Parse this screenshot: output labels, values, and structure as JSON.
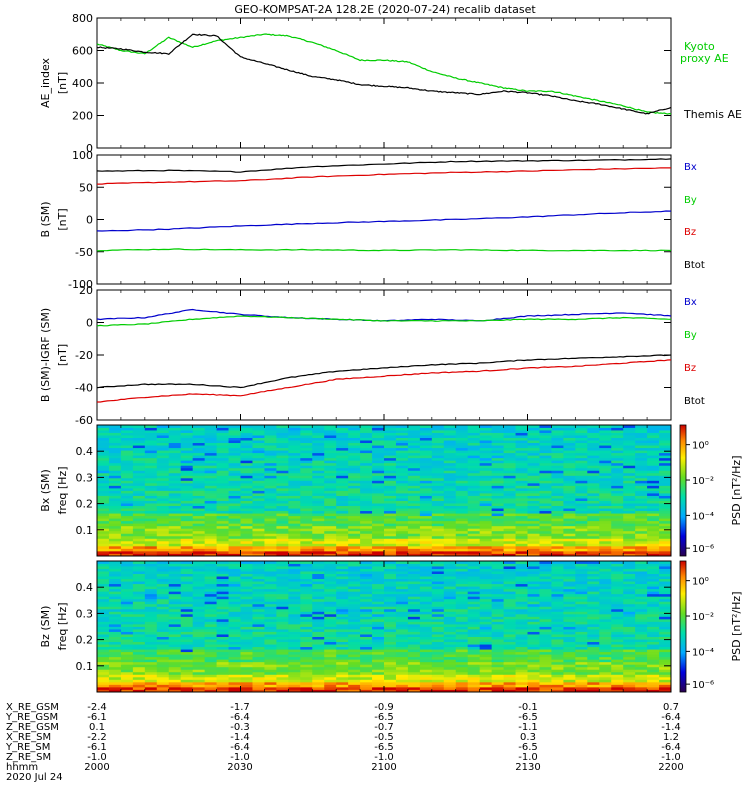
{
  "title": "GEO-KOMPSAT-2A 128.2E (2020-07-24) recalib dataset",
  "colors": {
    "black": "#000000",
    "red": "#dd0000",
    "blue": "#0000cc",
    "green": "#00cc00"
  },
  "chart_data": [
    {
      "type": "line",
      "panel": "ae",
      "ylabel": "AE_index",
      "yunit": "[nT]",
      "ylim": [
        0,
        800
      ],
      "yticks": [
        0,
        200,
        400,
        600,
        800
      ],
      "x": [
        2000,
        2005,
        2010,
        2015,
        2020,
        2025,
        2030,
        2035,
        2040,
        2045,
        2050,
        2055,
        2100,
        2105,
        2110,
        2115,
        2120,
        2125,
        2130,
        2135,
        2140,
        2145,
        2150,
        2155,
        2200
      ],
      "series": [
        {
          "name": "Kyoto proxy AE",
          "color": "#00cc00",
          "label_lines": [
            "Kyoto",
            "proxy AE"
          ],
          "values": [
            640,
            600,
            580,
            680,
            620,
            660,
            680,
            700,
            690,
            650,
            600,
            540,
            540,
            530,
            470,
            430,
            400,
            370,
            350,
            350,
            320,
            290,
            260,
            220,
            210
          ]
        },
        {
          "name": "Themis AE",
          "color": "#000000",
          "label_lines": [
            "Themis AE"
          ],
          "values": [
            620,
            610,
            590,
            580,
            700,
            690,
            560,
            520,
            480,
            440,
            420,
            390,
            380,
            370,
            350,
            340,
            330,
            350,
            340,
            320,
            290,
            270,
            240,
            210,
            250
          ]
        }
      ]
    },
    {
      "type": "line",
      "panel": "b_sm",
      "ylabel": "B (SM)",
      "yunit": "[nT]",
      "ylim": [
        -100,
        100
      ],
      "yticks": [
        -100,
        -50,
        0,
        50,
        100
      ],
      "x": [
        2000,
        2015,
        2030,
        2045,
        2100,
        2115,
        2130,
        2145,
        2200
      ],
      "series": [
        {
          "name": "Bx",
          "color": "#000000",
          "values": [
            75,
            76,
            74,
            82,
            86,
            90,
            91,
            92,
            94
          ]
        },
        {
          "name": "By",
          "color": "#00cc00",
          "values": [
            -48,
            -46,
            -47,
            -47,
            -48,
            -47,
            -48,
            -48,
            -48
          ]
        },
        {
          "name": "Bz",
          "color": "#dd0000",
          "values": [
            55,
            58,
            60,
            66,
            70,
            73,
            75,
            78,
            80
          ]
        },
        {
          "name": "Btot",
          "color": "#0000cc",
          "values": [
            -18,
            -15,
            -10,
            -6,
            -3,
            0,
            4,
            9,
            13
          ]
        }
      ],
      "legend": [
        "Bx",
        "By",
        "Bz",
        "Btot"
      ]
    },
    {
      "type": "line",
      "panel": "b_igrf",
      "ylabel": "B (SM)-IGRF (SM)",
      "yunit": "[nT]",
      "ylim": [
        -60,
        20
      ],
      "yticks": [
        -60,
        -40,
        -20,
        0,
        20
      ],
      "x": [
        2000,
        2010,
        2020,
        2030,
        2040,
        2050,
        2100,
        2110,
        2120,
        2130,
        2140,
        2150,
        2200
      ],
      "series": [
        {
          "name": "Bx",
          "color": "#0000cc",
          "values": [
            2,
            3,
            8,
            5,
            3,
            2,
            1,
            2,
            1,
            4,
            5,
            6,
            4
          ]
        },
        {
          "name": "By",
          "color": "#00cc00",
          "values": [
            -2,
            -1,
            2,
            4,
            3,
            2,
            1,
            1,
            1,
            2,
            2,
            3,
            2
          ]
        },
        {
          "name": "Bz",
          "color": "#dd0000",
          "values": [
            -49,
            -46,
            -44,
            -45,
            -40,
            -35,
            -33,
            -31,
            -30,
            -28,
            -27,
            -25,
            -23
          ]
        },
        {
          "name": "Btot",
          "color": "#000000",
          "values": [
            -40,
            -38,
            -38,
            -40,
            -34,
            -30,
            -28,
            -26,
            -25,
            -23,
            -22,
            -21,
            -20
          ]
        }
      ],
      "legend": [
        "Bx",
        "By",
        "Bz",
        "Btot"
      ]
    },
    {
      "type": "heatmap",
      "panel": "bx_spec",
      "ylabel": "Bx (SM)",
      "yunit": "freq [Hz]",
      "ylim": [
        0,
        0.5
      ],
      "yticks": [
        0.1,
        0.2,
        0.3,
        0.4
      ],
      "colorbar": {
        "label": "PSD [nT²/Hz]",
        "ticks": [
          "10⁰",
          "10⁻²",
          "10⁻⁴",
          "10⁻⁶"
        ]
      }
    },
    {
      "type": "heatmap",
      "panel": "bz_spec",
      "ylabel": "Bz (SM)",
      "yunit": "freq [Hz]",
      "ylim": [
        0,
        0.5
      ],
      "yticks": [
        0.1,
        0.2,
        0.3,
        0.4
      ],
      "colorbar": {
        "label": "PSD [nT²/Hz]",
        "ticks": [
          "10⁰",
          "10⁻²",
          "10⁻⁴",
          "10⁻⁶"
        ]
      }
    }
  ],
  "xaxis": {
    "ticks": [
      "2000",
      "2030",
      "2100",
      "2130",
      "2200"
    ],
    "rows": [
      {
        "label": "X_RE_GSM",
        "values": [
          "-2.4",
          "-1.7",
          "-0.9",
          "-0.1",
          "0.7"
        ]
      },
      {
        "label": "Y_RE_GSM",
        "values": [
          "-6.1",
          "-6.4",
          "-6.5",
          "-6.5",
          "-6.4"
        ]
      },
      {
        "label": "Z_RE_GSM",
        "values": [
          "0.1",
          "-0.3",
          "-0.7",
          "-1.1",
          "-1.4"
        ]
      },
      {
        "label": "X_RE_SM",
        "values": [
          "-2.2",
          "-1.4",
          "-0.5",
          "0.3",
          "1.2"
        ]
      },
      {
        "label": "Y_RE_SM",
        "values": [
          "-6.1",
          "-6.4",
          "-6.5",
          "-6.5",
          "-6.4"
        ]
      },
      {
        "label": "Z_RE_SM",
        "values": [
          "-1.0",
          "-1.0",
          "-1.0",
          "-1.0",
          "-1.0"
        ]
      },
      {
        "label": "hhmm",
        "values": [
          "2000",
          "2030",
          "2100",
          "2130",
          "2200"
        ]
      }
    ],
    "date": "2020 Jul 24"
  }
}
